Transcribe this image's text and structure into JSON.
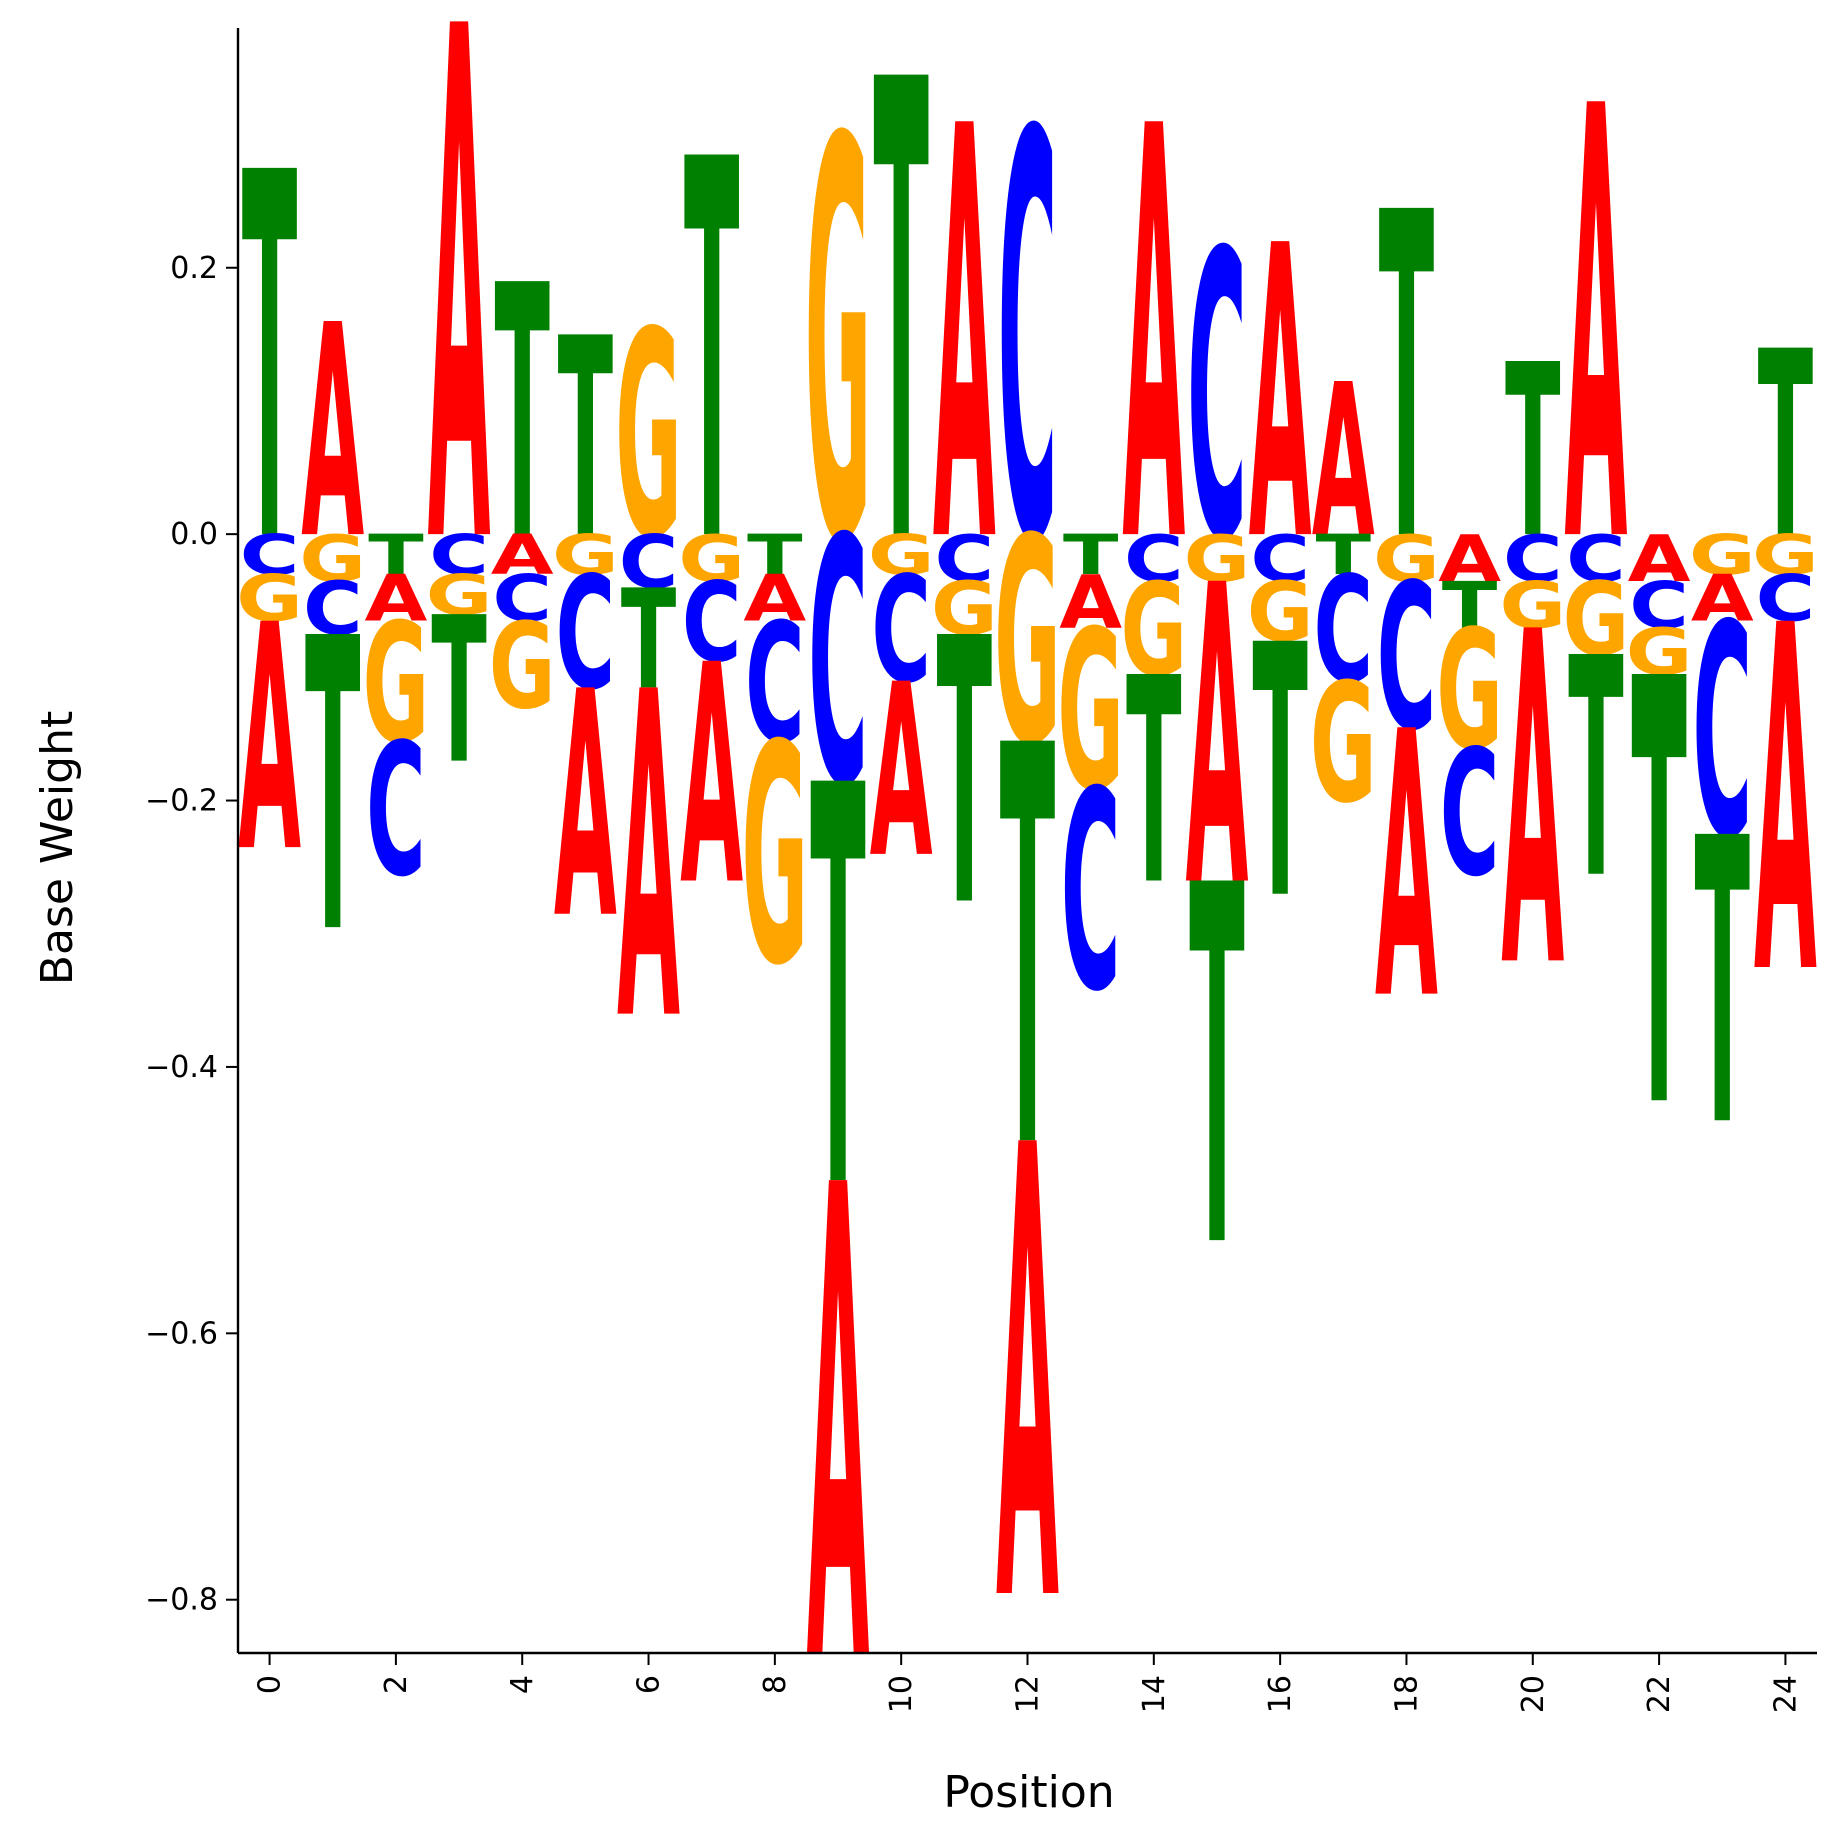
{
  "chart_data": {
    "type": "sequence-logo",
    "xlabel": "Position",
    "ylabel": "Base Weight",
    "ylim": [
      -0.84,
      0.38
    ],
    "xlim": [
      -0.5,
      24.5
    ],
    "grid": false,
    "legend": "none",
    "x_ticks": [
      0,
      2,
      4,
      6,
      8,
      10,
      12,
      14,
      16,
      18,
      20,
      22,
      24
    ],
    "x_tick_labels": [
      "0",
      "2",
      "4",
      "6",
      "8",
      "10",
      "12",
      "14",
      "16",
      "18",
      "20",
      "22",
      "24"
    ],
    "y_ticks": [
      -0.8,
      -0.6,
      -0.4,
      -0.2,
      0.0,
      0.2
    ],
    "y_tick_labels": [
      "−0.8",
      "−0.6",
      "−0.4",
      "−0.2",
      "0.0",
      "0.2"
    ],
    "colors": {
      "A": "#ff0000",
      "C": "#0000ff",
      "G": "#ffa500",
      "T": "#008000"
    },
    "positions": [
      {
        "pos": 0,
        "A": -0.17,
        "C": -0.03,
        "G": -0.035,
        "T": 0.275
      },
      {
        "pos": 1,
        "A": 0.16,
        "C": -0.04,
        "G": -0.035,
        "T": -0.22
      },
      {
        "pos": 2,
        "A": -0.035,
        "C": -0.1,
        "G": -0.09,
        "T": -0.03
      },
      {
        "pos": 3,
        "A": 0.385,
        "C": -0.03,
        "G": -0.03,
        "T": -0.11
      },
      {
        "pos": 4,
        "A": -0.03,
        "C": -0.035,
        "G": -0.065,
        "T": 0.19
      },
      {
        "pos": 5,
        "A": -0.17,
        "C": -0.085,
        "G": -0.03,
        "T": 0.15
      },
      {
        "pos": 6,
        "A": -0.245,
        "C": -0.04,
        "G": 0.155,
        "T": -0.075
      },
      {
        "pos": 7,
        "A": -0.165,
        "C": -0.06,
        "G": -0.035,
        "T": 0.285
      },
      {
        "pos": 8,
        "A": -0.035,
        "C": -0.09,
        "G": -0.165,
        "T": -0.03
      },
      {
        "pos": 9,
        "A": -0.355,
        "C": -0.185,
        "G": 0.3,
        "T": -0.3
      },
      {
        "pos": 10,
        "A": -0.13,
        "C": -0.08,
        "G": -0.03,
        "T": 0.345
      },
      {
        "pos": 11,
        "A": 0.31,
        "C": -0.035,
        "G": -0.04,
        "T": -0.2
      },
      {
        "pos": 12,
        "A": -0.34,
        "C": 0.305,
        "G": -0.155,
        "T": -0.3
      },
      {
        "pos": 13,
        "A": -0.04,
        "C": -0.15,
        "G": -0.12,
        "T": -0.03
      },
      {
        "pos": 14,
        "A": 0.31,
        "C": -0.035,
        "G": -0.07,
        "T": -0.155
      },
      {
        "pos": 15,
        "A": -0.225,
        "C": 0.215,
        "G": -0.035,
        "T": -0.27
      },
      {
        "pos": 16,
        "A": 0.22,
        "C": -0.035,
        "G": -0.045,
        "T": -0.19
      },
      {
        "pos": 17,
        "A": 0.115,
        "C": -0.08,
        "G": -0.09,
        "T": -0.03
      },
      {
        "pos": 18,
        "A": -0.2,
        "C": -0.11,
        "G": -0.035,
        "T": 0.245
      },
      {
        "pos": 19,
        "A": -0.035,
        "C": -0.095,
        "G": -0.09,
        "T": -0.035
      },
      {
        "pos": 20,
        "A": -0.25,
        "C": -0.035,
        "G": -0.035,
        "T": 0.13
      },
      {
        "pos": 21,
        "A": 0.325,
        "C": -0.035,
        "G": -0.055,
        "T": -0.165
      },
      {
        "pos": 22,
        "A": -0.035,
        "C": -0.035,
        "G": -0.035,
        "T": -0.32
      },
      {
        "pos": 23,
        "A": -0.035,
        "C": -0.16,
        "G": -0.03,
        "T": -0.215
      },
      {
        "pos": 24,
        "A": -0.26,
        "C": -0.035,
        "G": -0.03,
        "T": 0.14
      }
    ]
  }
}
